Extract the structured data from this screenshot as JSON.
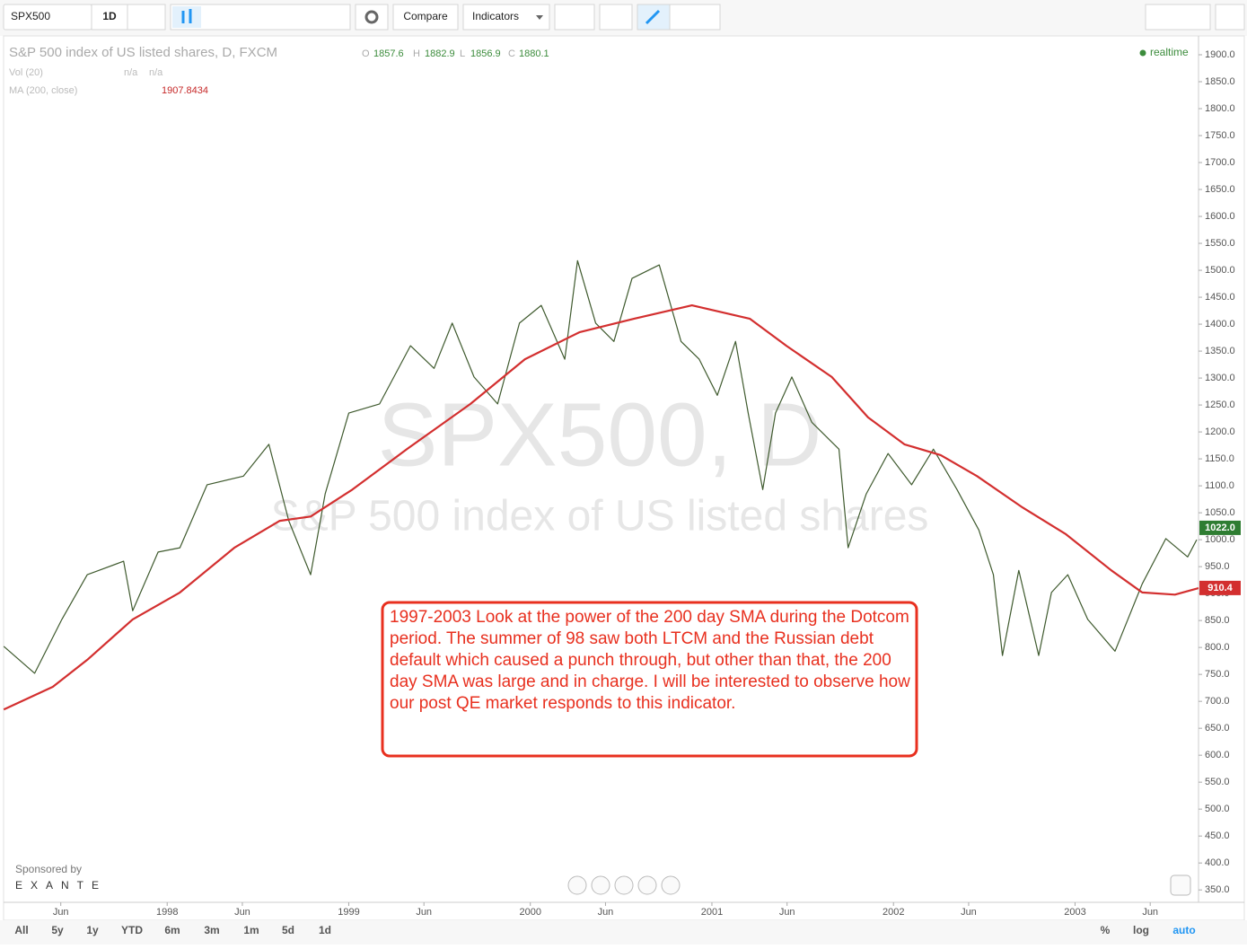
{
  "toolbar": {
    "symbol": "SPX500",
    "interval": "1D",
    "compare": "Compare",
    "indicators": "Indicators"
  },
  "legend": {
    "o_label": "O",
    "o": "1857.6",
    "h_label": "H",
    "h": "1882.9",
    "l_label": "L",
    "l": "1856.9",
    "c_label": "C",
    "c": "1880.1",
    "vol": "Vol (20)",
    "vol_values": [
      "n/a",
      "n/a"
    ],
    "ma_value": "1907.8434",
    "realtime": "realtime"
  },
  "watermark": {
    "symbol": "SPX500, D",
    "name": "S&P 500 index of US listed shares"
  },
  "annotation": "1997-2003 Look at the power of the 200 day SMA during the Dotcom period. The summer of 98 saw both LTCM and the Russian debt default which caused a punch through, but other than that, the 200 day SMA was large and in charge. I will be interested to observe how our post QE market responds to this indicator.",
  "sponsor": {
    "label": "Sponsored by",
    "brand": "EXANTE"
  },
  "range_buttons": [
    "All",
    "5y",
    "1y",
    "YTD",
    "6m",
    "3m",
    "1m",
    "5d",
    "1d"
  ],
  "scale_buttons": [
    "%",
    "log",
    "auto"
  ],
  "chart_data": {
    "type": "line",
    "xlim": [
      1997.104,
      2003.68
    ],
    "ylim": [
      327,
      1935
    ],
    "xticks": [
      {
        "value": 1997.414,
        "label": "Jun"
      },
      1998,
      {
        "value": 1998.414,
        "label": "Jun"
      },
      1999,
      {
        "value": 1999.414,
        "label": "Jun"
      },
      2000,
      {
        "value": 2000.414,
        "label": "Jun"
      },
      2001,
      {
        "value": 2001.414,
        "label": "Jun"
      },
      2002,
      {
        "value": 2002.414,
        "label": "Jun"
      },
      2003,
      {
        "value": 2003.414,
        "label": "Jun"
      }
    ],
    "yticks": [
      {
        "value": 350,
        "label": "350.0"
      },
      {
        "value": 400,
        "label": "400.0"
      },
      {
        "value": 450,
        "label": "450.0"
      },
      {
        "value": 500,
        "label": "500.0"
      },
      {
        "value": 550,
        "label": "550.0"
      },
      {
        "value": 600,
        "label": "600.0"
      },
      {
        "value": 650,
        "label": "650.0"
      },
      {
        "value": 700,
        "label": "700.0"
      },
      {
        "value": 750,
        "label": "750.0"
      },
      {
        "value": 800,
        "label": "800.0"
      },
      {
        "value": 850,
        "label": "850.0"
      },
      {
        "value": 900,
        "label": "900.0"
      },
      {
        "value": 950,
        "label": "950.0"
      },
      {
        "value": 1000,
        "label": "1000.0"
      },
      {
        "value": 1050,
        "label": "1050.0"
      },
      {
        "value": 1100,
        "label": "1100.0"
      },
      {
        "value": 1150,
        "label": "1150.0"
      },
      {
        "value": 1200,
        "label": "1200.0"
      },
      {
        "value": 1250,
        "label": "1250.0"
      },
      {
        "value": 1300,
        "label": "1300.0"
      },
      {
        "value": 1350,
        "label": "1350.0"
      },
      {
        "value": 1400,
        "label": "1400.0"
      },
      {
        "value": 1450,
        "label": "1450.0"
      },
      {
        "value": 1500,
        "label": "1500.0"
      },
      {
        "value": 1550,
        "label": "1550.0"
      },
      {
        "value": 1600,
        "label": "1600.0"
      },
      {
        "value": 1650,
        "label": "1650.0"
      },
      {
        "value": 1700,
        "label": "1700.0"
      },
      {
        "value": 1750,
        "label": "1750.0"
      },
      {
        "value": 1800,
        "label": "1800.0"
      },
      {
        "value": 1850,
        "label": "1850.0"
      },
      {
        "value": 1900,
        "label": "1900.0"
      }
    ],
    "grid": false,
    "series": [
      {
        "name": "S&P 500 index of US listed shares, D, FXCM",
        "color": "#3f5a2e",
        "x": [
          1997.1,
          1997.27,
          1997.42,
          1997.56,
          1997.76,
          1997.81,
          1997.95,
          1998.07,
          1998.22,
          1998.42,
          1998.56,
          1998.67,
          1998.79,
          1998.87,
          1999.0,
          1999.17,
          1999.34,
          1999.47,
          1999.57,
          1999.69,
          1999.82,
          1999.94,
          2000.06,
          2000.19,
          2000.26,
          2000.36,
          2000.46,
          2000.56,
          2000.71,
          2000.83,
          2000.93,
          2001.03,
          2001.13,
          2001.2,
          2001.28,
          2001.35,
          2001.44,
          2001.55,
          2001.7,
          2001.75,
          2001.85,
          2001.97,
          2002.1,
          2002.22,
          2002.35,
          2002.47,
          2002.55,
          2002.6,
          2002.69,
          2002.8,
          2002.87,
          2002.96,
          2003.07,
          2003.22,
          2003.37,
          2003.5,
          2003.62,
          2003.67
        ],
        "values": [
          802,
          752,
          852,
          935,
          960,
          868,
          977,
          985,
          1102,
          1118,
          1177,
          1035,
          935,
          1085,
          1235,
          1252,
          1360,
          1318,
          1402,
          1302,
          1252,
          1402,
          1435,
          1335,
          1518,
          1402,
          1368,
          1485,
          1510,
          1368,
          1335,
          1268,
          1368,
          1235,
          1093,
          1235,
          1302,
          1218,
          1168,
          985,
          1085,
          1160,
          1102,
          1168,
          1093,
          1018,
          935,
          785,
          943,
          785,
          902,
          935,
          852,
          793,
          918,
          1002,
          968,
          1000
        ]
      },
      {
        "name": "MA (200, close)",
        "color": "#d32f2f",
        "x": [
          1997.1,
          1997.37,
          1997.56,
          1997.81,
          1998.07,
          1998.37,
          1998.62,
          1998.79,
          1999.02,
          1999.32,
          1999.67,
          1999.97,
          2000.27,
          2000.57,
          2000.89,
          2001.21,
          2001.41,
          2001.66,
          2001.86,
          2002.06,
          2002.26,
          2002.46,
          2002.71,
          2002.95,
          2003.2,
          2003.37,
          2003.55,
          2003.68
        ],
        "values": [
          685,
          727,
          777,
          852,
          902,
          985,
          1035,
          1043,
          1093,
          1168,
          1252,
          1335,
          1385,
          1410,
          1435,
          1410,
          1360,
          1302,
          1227,
          1177,
          1157,
          1118,
          1060,
          1010,
          943,
          902,
          898,
          910
        ]
      }
    ],
    "last_price": {
      "value": 1022,
      "label": "1022.0",
      "color": "#2e7d32"
    },
    "ma_last": {
      "value": 910.4,
      "color": "#d32f2f"
    }
  }
}
